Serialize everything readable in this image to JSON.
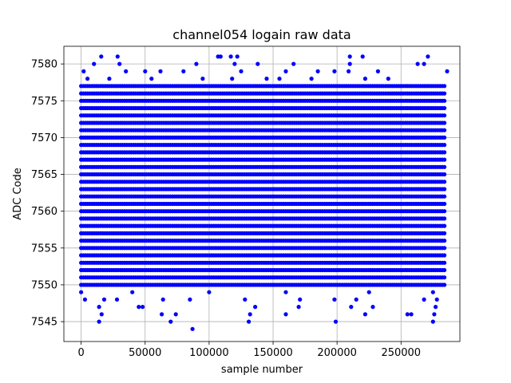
{
  "chart_data": {
    "type": "scatter",
    "title": "channel054 logain raw data",
    "xlabel": "sample number",
    "ylabel": "ADC Code",
    "xlim": [
      -13500,
      296000
    ],
    "ylim": [
      7542.3,
      7582.4
    ],
    "xticks": [
      0,
      50000,
      100000,
      150000,
      200000,
      250000
    ],
    "xtick_labels": [
      "0",
      "50000",
      "100000",
      "150000",
      "200000",
      "250000"
    ],
    "yticks": [
      7545,
      7550,
      7555,
      7560,
      7565,
      7570,
      7575,
      7580
    ],
    "ytick_labels": [
      "7545",
      "7550",
      "7555",
      "7560",
      "7565",
      "7570",
      "7575",
      "7580"
    ],
    "grid": true,
    "marker_color": "#0000ff",
    "series": [
      {
        "x_range": [
          0,
          285000
        ],
        "dense_band": [
          7550,
          7577
        ],
        "points": [
          [
            15700,
            7581
          ],
          [
            28500,
            7581
          ],
          [
            107000,
            7581
          ],
          [
            109000,
            7581
          ],
          [
            117000,
            7581
          ],
          [
            122000,
            7581
          ],
          [
            210000,
            7581
          ],
          [
            220000,
            7581
          ],
          [
            271000,
            7581
          ],
          [
            10000,
            7580
          ],
          [
            30000,
            7580
          ],
          [
            90000,
            7580
          ],
          [
            120000,
            7580
          ],
          [
            138000,
            7580
          ],
          [
            166000,
            7580
          ],
          [
            210000,
            7580
          ],
          [
            263000,
            7580
          ],
          [
            268000,
            7580
          ],
          [
            2000,
            7579
          ],
          [
            35000,
            7579
          ],
          [
            50000,
            7579
          ],
          [
            62000,
            7579
          ],
          [
            80000,
            7579
          ],
          [
            125000,
            7579
          ],
          [
            160000,
            7579
          ],
          [
            185000,
            7579
          ],
          [
            198000,
            7579
          ],
          [
            209000,
            7579
          ],
          [
            232000,
            7579
          ],
          [
            286000,
            7579
          ],
          [
            5000,
            7578
          ],
          [
            22000,
            7578
          ],
          [
            55000,
            7578
          ],
          [
            95000,
            7578
          ],
          [
            118000,
            7578
          ],
          [
            145000,
            7578
          ],
          [
            155000,
            7578
          ],
          [
            180000,
            7578
          ],
          [
            222000,
            7578
          ],
          [
            240000,
            7578
          ],
          [
            0,
            7549
          ],
          [
            40000,
            7549
          ],
          [
            100000,
            7549
          ],
          [
            160000,
            7549
          ],
          [
            225000,
            7549
          ],
          [
            275000,
            7549
          ],
          [
            3000,
            7548
          ],
          [
            18000,
            7548
          ],
          [
            28000,
            7548
          ],
          [
            64000,
            7548
          ],
          [
            85000,
            7548
          ],
          [
            128000,
            7548
          ],
          [
            171000,
            7548
          ],
          [
            198000,
            7548
          ],
          [
            215000,
            7548
          ],
          [
            268000,
            7548
          ],
          [
            278000,
            7548
          ],
          [
            14000,
            7547
          ],
          [
            45000,
            7547
          ],
          [
            48000,
            7547
          ],
          [
            136000,
            7547
          ],
          [
            170000,
            7547
          ],
          [
            211000,
            7547
          ],
          [
            228000,
            7547
          ],
          [
            277000,
            7547
          ],
          [
            16000,
            7546
          ],
          [
            63000,
            7546
          ],
          [
            74000,
            7546
          ],
          [
            132000,
            7546
          ],
          [
            160000,
            7546
          ],
          [
            222000,
            7546
          ],
          [
            255000,
            7546
          ],
          [
            258000,
            7546
          ],
          [
            276000,
            7546
          ],
          [
            14000,
            7545
          ],
          [
            70000,
            7545
          ],
          [
            131000,
            7545
          ],
          [
            199000,
            7545
          ],
          [
            275000,
            7545
          ],
          [
            87000,
            7544
          ]
        ]
      }
    ]
  }
}
